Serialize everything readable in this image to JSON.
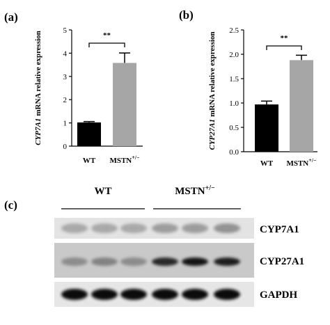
{
  "chart_data": [
    {
      "type": "bar",
      "panel": "(a)",
      "ylabel": [
        "CYP7A1",
        "mRNA relative expression"
      ],
      "categories": [
        "WT",
        "MSTN"
      ],
      "category_superscripts": [
        null,
        "+/−"
      ],
      "values": [
        1.02,
        3.58
      ],
      "errors": [
        0.04,
        0.43
      ],
      "colors": [
        "#000000",
        "#a6a6a6"
      ],
      "ylim": [
        0,
        5
      ],
      "yticks": [
        0,
        1,
        2,
        3,
        4,
        5
      ],
      "annotation": "**"
    },
    {
      "type": "bar",
      "panel": "(b)",
      "ylabel": [
        "CYP27A1",
        "mRNA relative expression"
      ],
      "categories": [
        "WT",
        "MSTN"
      ],
      "category_superscripts": [
        null,
        "+/−"
      ],
      "values": [
        0.97,
        1.88
      ],
      "errors": [
        0.07,
        0.1
      ],
      "colors": [
        "#000000",
        "#a6a6a6"
      ],
      "ylim": [
        0,
        2.5
      ],
      "yticks": [
        {
          "value": 0,
          "label": "0.0"
        },
        0.5,
        {
          "value": 1,
          "label": "1.0"
        },
        1.5,
        {
          "value": 2,
          "label": "2.0"
        },
        2.5
      ],
      "annotation": "**"
    }
  ],
  "blot": {
    "panel": "(c)",
    "groups": [
      {
        "label": "WT"
      },
      {
        "label": "MSTN",
        "superscript": "+/−"
      }
    ],
    "rows": [
      "CYP7A1",
      "CYP27A1",
      "GAPDH"
    ]
  }
}
